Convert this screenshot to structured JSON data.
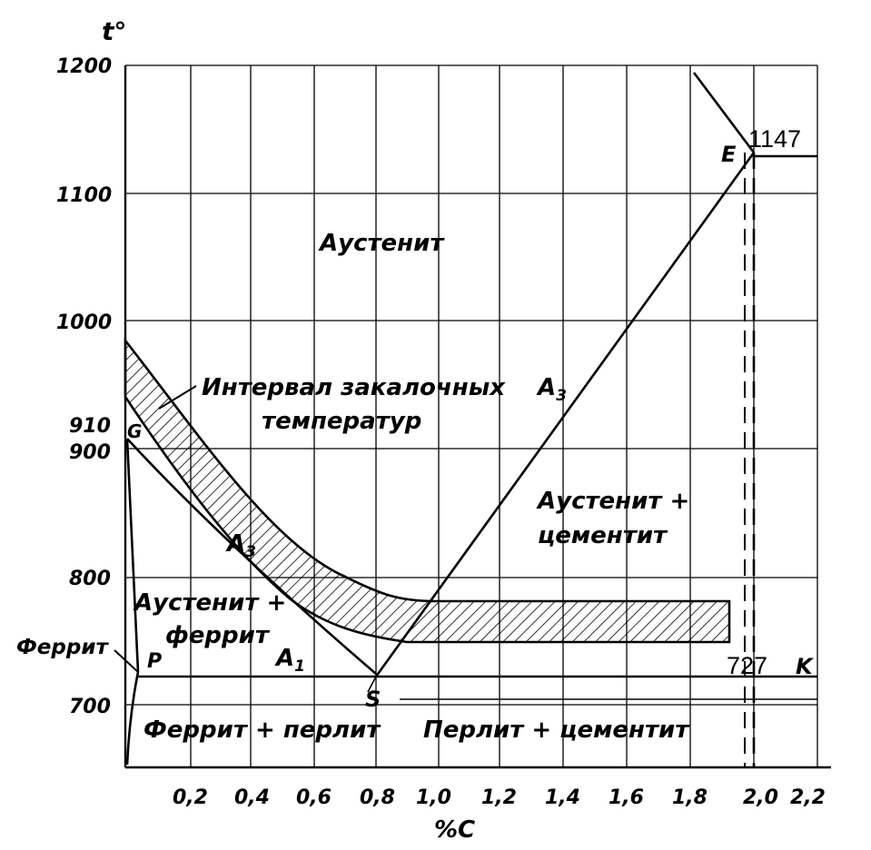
{
  "axes": {
    "y_title": "t°",
    "x_title": "%C",
    "y_ticks": [
      "1200",
      "1100",
      "1000",
      "910",
      "900",
      "800",
      "700"
    ],
    "x_ticks": [
      "0,2",
      "0,4",
      "0,6",
      "0,8",
      "1,0",
      "1,2",
      "1,4",
      "1,6",
      "1,8",
      "2,0",
      "2,2"
    ]
  },
  "regions": {
    "austenite": "Аустенит",
    "quench_interval_line1": "Интервал закалочных",
    "quench_interval_line2": "температур",
    "austenite_cementite_line1": "Аустенит +",
    "austenite_cementite_line2": "цементит",
    "austenite_ferrite_line1": "Аустенит +",
    "austenite_ferrite_line2": "феррит",
    "ferrite": "Феррит",
    "ferrite_pearlite": "Феррит + перлит",
    "pearlite_cementite": "Перлит + цементит"
  },
  "points": {
    "G": "G",
    "P": "P",
    "S": "S",
    "E": "E",
    "K": "K",
    "E_temp": "1147",
    "K_temp": "727"
  },
  "lines": {
    "A3_left": "A",
    "A3_left_sub": "3",
    "A3_right": "A",
    "A3_right_sub": "3",
    "A1": "A",
    "A1_sub": "1"
  }
}
